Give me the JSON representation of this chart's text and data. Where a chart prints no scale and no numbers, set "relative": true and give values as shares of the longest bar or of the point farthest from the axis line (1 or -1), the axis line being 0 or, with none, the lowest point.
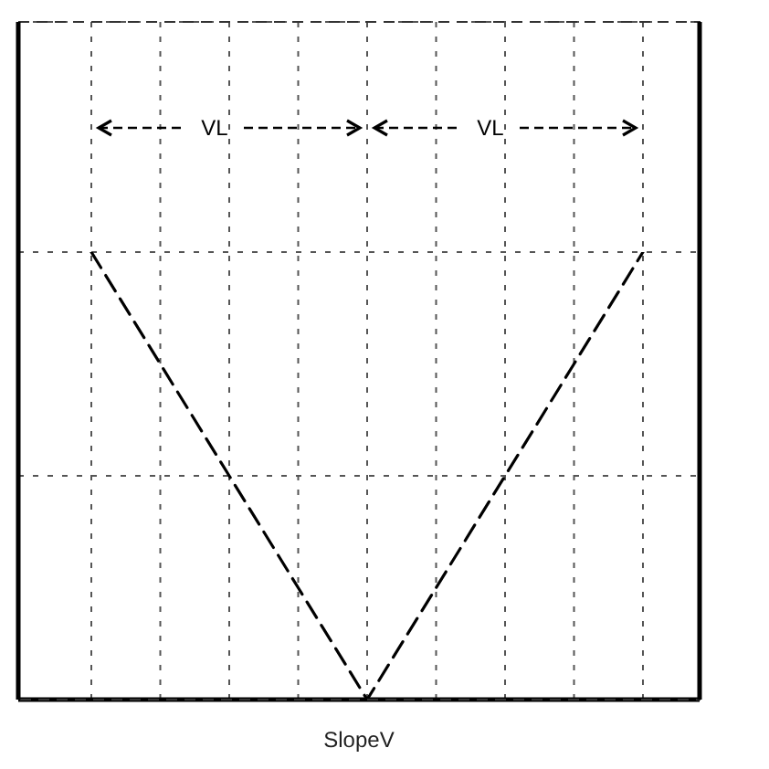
{
  "chart_data": {
    "type": "line",
    "xlabel": "SlopeV",
    "annotations": [
      "VL",
      "VL"
    ],
    "categories": [
      null,
      null,
      null,
      null,
      null,
      null,
      null,
      null,
      null
    ],
    "values": [
      1,
      0.75,
      0.5,
      0.25,
      0,
      0.25,
      0.5,
      0.75,
      1
    ],
    "color": "#000000",
    "relative": true,
    "grid": true,
    "line_style": "dashed",
    "marker": "none"
  }
}
